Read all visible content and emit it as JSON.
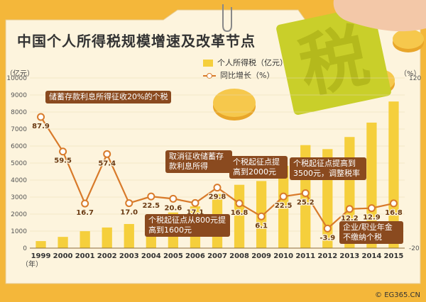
{
  "header": {
    "title": "中国个人所得税规模增速及改革节点",
    "left_unit": "（亿元）",
    "right_unit": "（%）",
    "year_unit": "（年）"
  },
  "legend": {
    "bar": "个人所得税（亿元）",
    "line": "同比增长（%）"
  },
  "annotations": {
    "a1999": "储蓄存款利息所得征收20%的个税",
    "a2006": "个税起征点从800元提高到1600元",
    "a2007": "取消征收储蓄存款利息所得",
    "a2008": "个税起征点提高到2000元",
    "a2011": "个税起征点提高到3500元，调整税率",
    "a2014": "企业/职业年金不缴纳个税"
  },
  "watermark": "© EG365.CN",
  "colors": {
    "bar": "#f5cf3c",
    "line": "#d87a2a",
    "annotation": "#8a4a1f"
  },
  "chart_data": {
    "type": "bar",
    "categories": [
      "1999",
      "2000",
      "2001",
      "2002",
      "2003",
      "2004",
      "2005",
      "2006",
      "2007",
      "2008",
      "2009",
      "2010",
      "2011",
      "2012",
      "2013",
      "2014",
      "2015"
    ],
    "series": [
      {
        "name": "个人所得税（亿元）",
        "type": "bar",
        "values": [
          414,
          660,
          995,
          1212,
          1418,
          1737,
          2094,
          2453,
          3186,
          3722,
          3944,
          4837,
          6054,
          5820,
          6531,
          7377,
          8618
        ]
      },
      {
        "name": "同比增长（%）",
        "type": "line",
        "values": [
          87.9,
          59.5,
          16.7,
          57.4,
          17.0,
          22.5,
          20.6,
          17.1,
          29.8,
          16.8,
          6.1,
          22.5,
          25.2,
          -3.9,
          12.2,
          12.9,
          16.8
        ],
        "labels": [
          "87.9",
          "59.5",
          "16.7",
          "57.4",
          "17.0",
          "22.5",
          "20.6",
          "17.1",
          "29.8",
          "16.8",
          "6.1",
          "22.5",
          "25.2",
          "-3.9",
          "12.2",
          "12.9",
          "16.8"
        ]
      }
    ],
    "left_ticks": [
      "0",
      "1000",
      "2000",
      "3000",
      "4000",
      "5000",
      "6000",
      "7000",
      "8000",
      "9000",
      "10000"
    ],
    "right_ticks": [
      "120",
      "-20"
    ],
    "ylim": [
      0,
      10000
    ],
    "y2lim": [
      -20,
      120
    ],
    "grid": true
  }
}
